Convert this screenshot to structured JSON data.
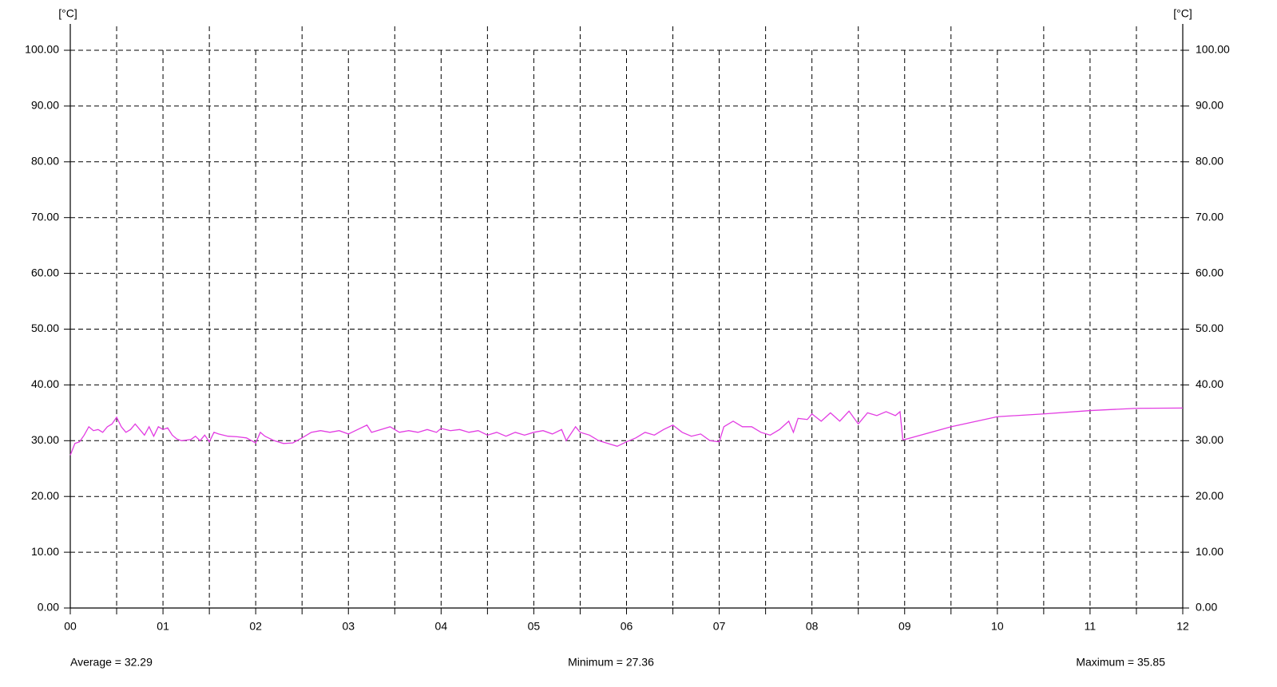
{
  "chart_data": {
    "type": "line",
    "ylabel": "[°C]",
    "annotations": [
      "Average = 32.29",
      "Minimum = 27.36",
      "Maximum = 35.85"
    ],
    "color": "#e23ce2",
    "grid": true,
    "right_axis": true,
    "xlim": [
      0,
      12
    ],
    "xticks": [
      {
        "value": 0,
        "label": "00"
      },
      {
        "value": 1,
        "label": "01"
      },
      {
        "value": 2,
        "label": "02"
      },
      {
        "value": 3,
        "label": "03"
      },
      {
        "value": 4,
        "label": "04"
      },
      {
        "value": 5,
        "label": "05"
      },
      {
        "value": 6,
        "label": "06"
      },
      {
        "value": 7,
        "label": "07"
      },
      {
        "value": 8,
        "label": "08"
      },
      {
        "value": 9,
        "label": "09"
      },
      {
        "value": 10,
        "label": "10"
      },
      {
        "value": 11,
        "label": "11"
      },
      {
        "value": 12,
        "label": "12"
      }
    ],
    "xminorticks": [
      0.5,
      1.5,
      2.5,
      3.5,
      4.5,
      5.5,
      6.5,
      7.5,
      8.5,
      9.5,
      10.5,
      11.5
    ],
    "ylim": [
      0,
      100
    ],
    "yticks": [
      {
        "value": 0,
        "label": "0.00"
      },
      {
        "value": 10,
        "label": "10.00"
      },
      {
        "value": 20,
        "label": "20.00"
      },
      {
        "value": 30,
        "label": "30.00"
      },
      {
        "value": 40,
        "label": "40.00"
      },
      {
        "value": 50,
        "label": "50.00"
      },
      {
        "value": 60,
        "label": "60.00"
      },
      {
        "value": 70,
        "label": "70.00"
      },
      {
        "value": 80,
        "label": "80.00"
      },
      {
        "value": 90,
        "label": "90.00"
      },
      {
        "value": 100,
        "label": "100.00"
      }
    ],
    "x": [
      0,
      0.05,
      0.1,
      0.15,
      0.2,
      0.25,
      0.3,
      0.35,
      0.4,
      0.45,
      0.5,
      0.55,
      0.6,
      0.65,
      0.7,
      0.75,
      0.8,
      0.85,
      0.9,
      0.95,
      1.0,
      1.05,
      1.1,
      1.15,
      1.2,
      1.3,
      1.35,
      1.4,
      1.45,
      1.5,
      1.55,
      1.6,
      1.7,
      1.8,
      1.9,
      2.0,
      2.05,
      2.1,
      2.2,
      2.3,
      2.4,
      2.5,
      2.6,
      2.7,
      2.8,
      2.9,
      3.0,
      3.1,
      3.2,
      3.25,
      3.35,
      3.45,
      3.55,
      3.65,
      3.75,
      3.85,
      3.95,
      4.0,
      4.1,
      4.2,
      4.3,
      4.4,
      4.5,
      4.6,
      4.7,
      4.8,
      4.9,
      5.0,
      5.1,
      5.2,
      5.3,
      5.35,
      5.45,
      5.5,
      5.6,
      5.7,
      5.8,
      5.9,
      6.0,
      6.1,
      6.2,
      6.3,
      6.4,
      6.5,
      6.6,
      6.7,
      6.8,
      6.9,
      7.0,
      7.05,
      7.15,
      7.25,
      7.35,
      7.45,
      7.55,
      7.65,
      7.75,
      7.8,
      7.85,
      7.95,
      8.0,
      8.1,
      8.2,
      8.3,
      8.4,
      8.5,
      8.6,
      8.7,
      8.8,
      8.9,
      8.95,
      8.98,
      9.0,
      9.5,
      10.0,
      10.5,
      11.0,
      11.5,
      12.0
    ],
    "values": [
      27.4,
      29.5,
      29.8,
      31,
      32.5,
      31.8,
      32,
      31.5,
      32.5,
      33,
      34.2,
      32.5,
      31.5,
      32,
      33,
      32,
      31,
      32.5,
      30.8,
      32.5,
      32,
      32.3,
      31,
      30.3,
      30,
      30.2,
      30.8,
      30,
      31,
      29.8,
      31.5,
      31.2,
      30.8,
      30.7,
      30.5,
      29.6,
      31.5,
      30.8,
      30,
      29.5,
      29.6,
      30.5,
      31.5,
      31.8,
      31.5,
      31.8,
      31.2,
      32,
      32.8,
      31.5,
      32,
      32.5,
      31.5,
      31.8,
      31.5,
      32,
      31.5,
      32.2,
      31.8,
      32,
      31.5,
      31.8,
      31,
      31.5,
      30.8,
      31.5,
      31,
      31.5,
      31.8,
      31.2,
      32,
      30,
      32.5,
      31.5,
      31,
      30,
      29.5,
      29,
      29.8,
      30.5,
      31.5,
      31,
      32,
      32.8,
      31.5,
      30.8,
      31.2,
      30,
      29.8,
      32.5,
      33.5,
      32.5,
      32.5,
      31.5,
      31,
      32,
      33.5,
      31.5,
      34,
      33.8,
      34.8,
      33.5,
      35,
      33.5,
      35.3,
      33,
      35,
      34.5,
      35.2,
      34.5,
      35.2,
      30.2,
      30.2,
      32.5,
      34.3,
      34.8,
      35.4,
      35.8,
      35.85
    ]
  }
}
